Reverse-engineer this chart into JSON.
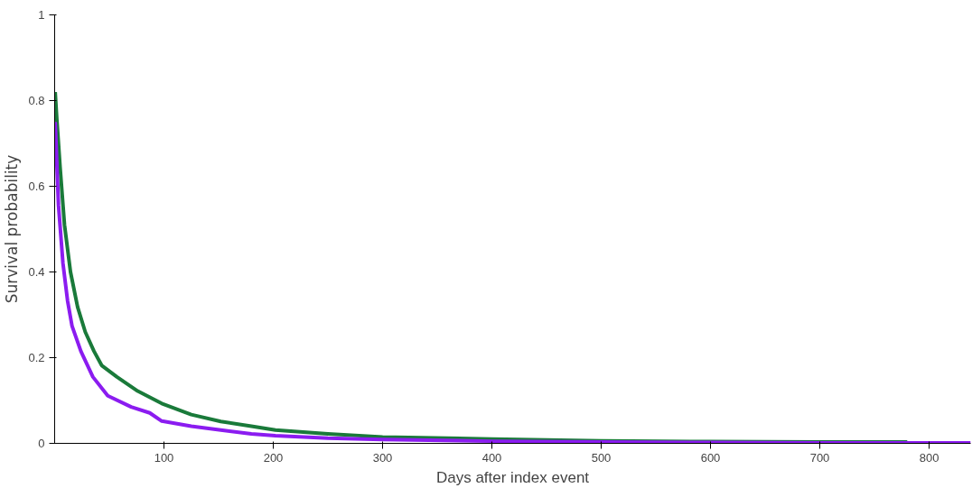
{
  "chart_data": {
    "type": "line",
    "xlabel": "Days after index event",
    "ylabel": "Survival probability",
    "xlim": [
      0,
      838
    ],
    "ylim": [
      0,
      1
    ],
    "xticks": [
      100,
      200,
      300,
      400,
      500,
      600,
      700,
      800
    ],
    "yticks": [
      0,
      0.2,
      0.4,
      0.6,
      0.8,
      1
    ],
    "grid": false,
    "marker": "none",
    "line_style": "solid",
    "series": [
      {
        "color": "#1a7a3a",
        "x": [
          0.5,
          2,
          5,
          9,
          14.5,
          21,
          28,
          36,
          43,
          57,
          76,
          98,
          125,
          152,
          180,
          202,
          250,
          300,
          400,
          500,
          600,
          700,
          780
        ],
        "values": [
          0.82,
          0.756,
          0.644,
          0.51,
          0.4,
          0.318,
          0.26,
          0.215,
          0.182,
          0.155,
          0.122,
          0.093,
          0.067,
          0.051,
          0.04,
          0.031,
          0.022,
          0.015,
          0.01,
          0.006,
          0.004,
          0.003,
          0.003
        ]
      },
      {
        "color": "#8b1cf0",
        "x": [
          0.5,
          3.5,
          7.6,
          11.8,
          15.9,
          24,
          35,
          48.6,
          70,
          87,
          98,
          125,
          152,
          180,
          202,
          250,
          300,
          400,
          500,
          600,
          700,
          838
        ],
        "values": [
          0.75,
          0.556,
          0.42,
          0.333,
          0.274,
          0.215,
          0.155,
          0.111,
          0.085,
          0.071,
          0.052,
          0.04,
          0.031,
          0.022,
          0.018,
          0.012,
          0.009,
          0.005,
          0.003,
          0.002,
          0.001,
          0.001
        ]
      }
    ]
  }
}
